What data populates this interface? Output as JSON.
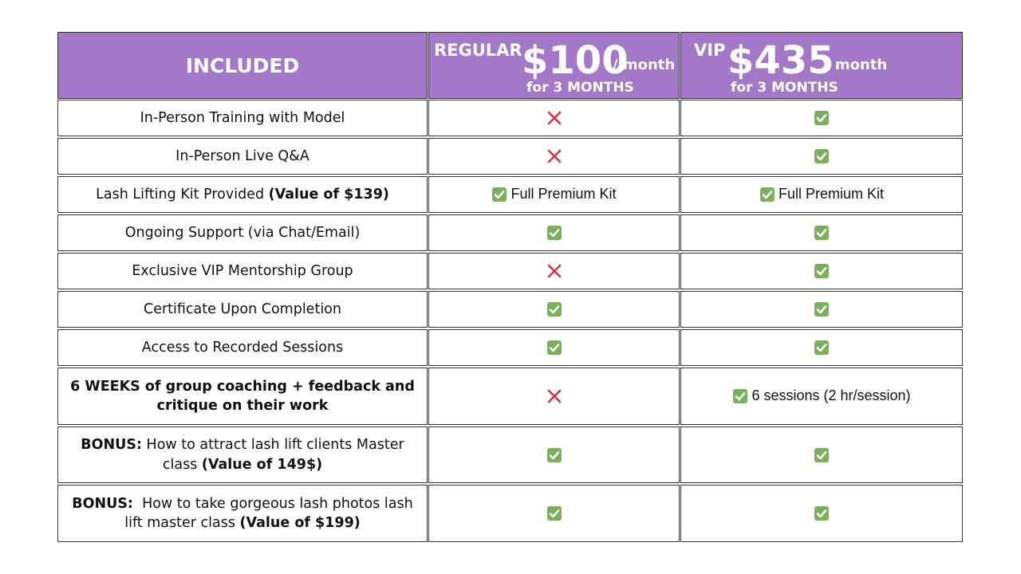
{
  "header": {
    "included": "INCLUDED",
    "plans": [
      {
        "name": "REGULAR",
        "price": "$100",
        "per": "/ month",
        "term": "for 3 MONTHS"
      },
      {
        "name": "VIP",
        "price": "$435",
        "per": "/ month",
        "term": "for 3 MONTHS"
      }
    ]
  },
  "rows": [
    {
      "feature": [
        {
          "text": "In-Person Training with Model"
        }
      ],
      "plans": [
        {
          "included": false
        },
        {
          "included": true
        }
      ]
    },
    {
      "feature": [
        {
          "text": "In-Person Live Q&A"
        }
      ],
      "plans": [
        {
          "included": false
        },
        {
          "included": true
        }
      ]
    },
    {
      "feature": [
        {
          "text": "Lash Lifting Kit Provided "
        },
        {
          "text": "(Value of $139)",
          "bold": true
        }
      ],
      "plans": [
        {
          "included": true,
          "text": "Full Premium Kit"
        },
        {
          "included": true,
          "text": "Full Premium Kit"
        }
      ]
    },
    {
      "feature": [
        {
          "text": "Ongoing Support (via Chat/Email)"
        }
      ],
      "plans": [
        {
          "included": true
        },
        {
          "included": true
        }
      ]
    },
    {
      "feature": [
        {
          "text": "Exclusive VIP Mentorship Group"
        }
      ],
      "plans": [
        {
          "included": false
        },
        {
          "included": true
        }
      ]
    },
    {
      "feature": [
        {
          "text": "Certificate Upon Completion"
        }
      ],
      "plans": [
        {
          "included": true
        },
        {
          "included": true
        }
      ]
    },
    {
      "feature": [
        {
          "text": "Access to Recorded Sessions"
        }
      ],
      "plans": [
        {
          "included": true
        },
        {
          "included": true
        }
      ]
    },
    {
      "feature": [
        {
          "text": "6 WEEKS of group coaching + feedback and critique on their work",
          "bold": true
        }
      ],
      "plans": [
        {
          "included": false
        },
        {
          "included": true,
          "text": "6 sessions (2 hr/session)"
        }
      ]
    },
    {
      "feature": [
        {
          "text": "BONUS:",
          "bold": true
        },
        {
          "text": " How to attract lash lift clients Master class "
        },
        {
          "text": "(Value of 149$)",
          "bold": true
        }
      ],
      "plans": [
        {
          "included": true
        },
        {
          "included": true
        }
      ]
    },
    {
      "feature": [
        {
          "text": "BONUS:",
          "bold": true
        },
        {
          "text": "  How to take gorgeous lash photos lash lift master class "
        },
        {
          "text": "(Value of $199)",
          "bold": true
        }
      ],
      "plans": [
        {
          "included": true
        },
        {
          "included": true
        }
      ]
    }
  ]
}
